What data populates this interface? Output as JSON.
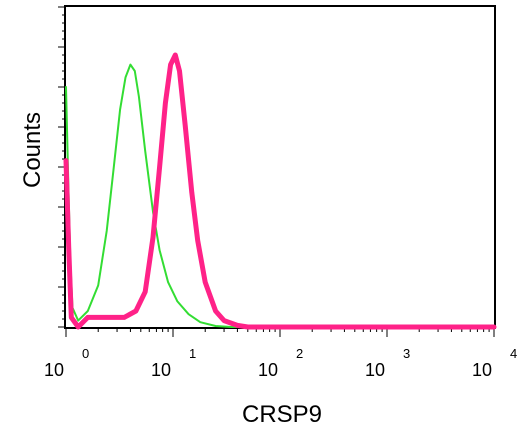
{
  "chart_data": {
    "type": "line",
    "xlabel": "CRSP9",
    "ylabel": "Counts",
    "x_scale": "log",
    "xlim": [
      1,
      10000
    ],
    "ylim": [
      0,
      100
    ],
    "grid": false,
    "x_ticks": [
      {
        "value": 1,
        "base": "10",
        "exp": "0"
      },
      {
        "value": 10,
        "base": "10",
        "exp": "1"
      },
      {
        "value": 100,
        "base": "10",
        "exp": "2"
      },
      {
        "value": 1000,
        "base": "10",
        "exp": "3"
      },
      {
        "value": 10000,
        "base": "10",
        "exp": "4"
      }
    ],
    "series": [
      {
        "color": "#33dd33",
        "points": [
          [
            1.0,
            75
          ],
          [
            1.05,
            45
          ],
          [
            1.1,
            20
          ],
          [
            1.15,
            6
          ],
          [
            1.3,
            2
          ],
          [
            1.6,
            5
          ],
          [
            2.0,
            13
          ],
          [
            2.4,
            30
          ],
          [
            2.8,
            50
          ],
          [
            3.2,
            68
          ],
          [
            3.6,
            78
          ],
          [
            4.0,
            82
          ],
          [
            4.4,
            80
          ],
          [
            4.8,
            72
          ],
          [
            5.5,
            55
          ],
          [
            6.5,
            36
          ],
          [
            7.5,
            24
          ],
          [
            9,
            14
          ],
          [
            11,
            8
          ],
          [
            14,
            4
          ],
          [
            18,
            1.5
          ],
          [
            25,
            0.3
          ],
          [
            35,
            0
          ],
          [
            10000,
            0
          ]
        ]
      },
      {
        "color": "#ff2288",
        "points": [
          [
            1.0,
            52
          ],
          [
            1.06,
            25
          ],
          [
            1.12,
            3
          ],
          [
            1.3,
            0
          ],
          [
            1.6,
            3
          ],
          [
            2.5,
            3
          ],
          [
            3.5,
            3
          ],
          [
            4.5,
            5
          ],
          [
            5.5,
            11
          ],
          [
            6.5,
            28
          ],
          [
            7.5,
            50
          ],
          [
            8.5,
            70
          ],
          [
            9.5,
            82
          ],
          [
            10.5,
            85
          ],
          [
            11.5,
            80
          ],
          [
            13,
            63
          ],
          [
            15,
            42
          ],
          [
            17,
            27
          ],
          [
            20,
            14
          ],
          [
            25,
            5
          ],
          [
            30,
            2
          ],
          [
            40,
            0.5
          ],
          [
            50,
            0
          ],
          [
            10000,
            0
          ]
        ]
      }
    ]
  }
}
